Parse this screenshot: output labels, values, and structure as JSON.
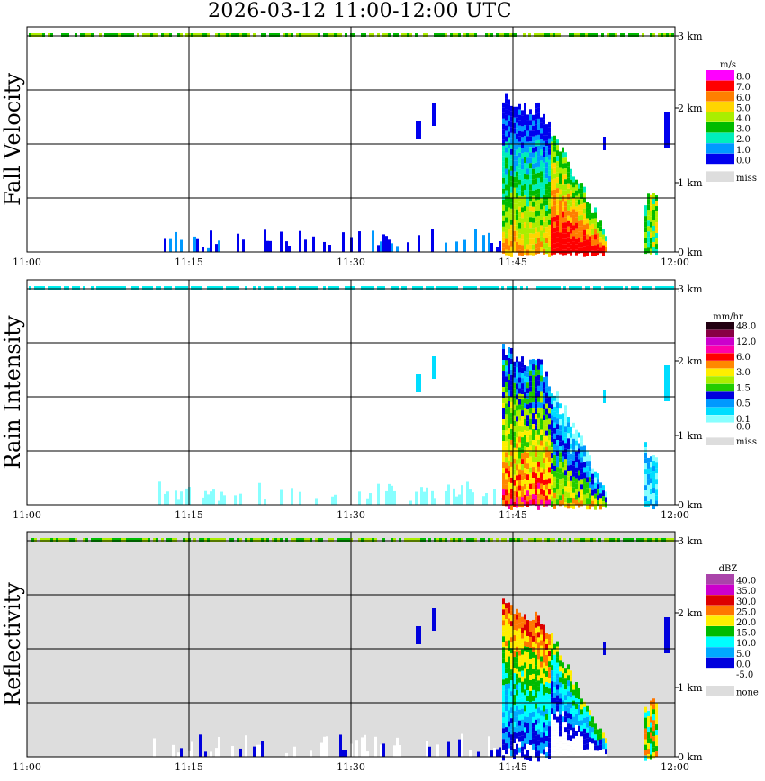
{
  "title": "2026-03-12   11:00-12:00 UTC",
  "chart_data": [
    {
      "type": "heatmap",
      "title": "Fall Velocity",
      "time_ticks": [
        "11:00",
        "11:15",
        "11:30",
        "11:45",
        "12:00"
      ],
      "height_ticks": [
        "3 km",
        "2 km",
        "1 km",
        "0 km"
      ],
      "legend_unit": "m/s",
      "legend": [
        {
          "label": "8.0",
          "color": "#ff00ff"
        },
        {
          "label": "7.0",
          "color": "#ff0000"
        },
        {
          "label": "6.0",
          "color": "#ff7f00"
        },
        {
          "label": "5.0",
          "color": "#ffd500"
        },
        {
          "label": "4.0",
          "color": "#aaee00"
        },
        {
          "label": "3.0",
          "color": "#00bb00"
        },
        {
          "label": "2.0",
          "color": "#00eebb"
        },
        {
          "label": "1.0",
          "color": "#0099ff"
        },
        {
          "label": "0.0",
          "color": "#0000ee"
        },
        {
          "label": "miss",
          "color": "#dddddd"
        }
      ]
    },
    {
      "type": "heatmap",
      "title": "Rain Intensity",
      "time_ticks": [
        "11:00",
        "11:15",
        "11:30",
        "11:45",
        "12:00"
      ],
      "height_ticks": [
        "3 km",
        "2 km",
        "1 km",
        "0 km"
      ],
      "legend_unit": "mm/hr",
      "legend": [
        {
          "label": "48.0",
          "color": "#220011"
        },
        {
          "label": "",
          "color": "#880044"
        },
        {
          "label": "12.0",
          "color": "#cc00cc"
        },
        {
          "label": "",
          "color": "#ff00aa"
        },
        {
          "label": "6.0",
          "color": "#ff0000"
        },
        {
          "label": "",
          "color": "#ff8800"
        },
        {
          "label": "3.0",
          "color": "#ffee00"
        },
        {
          "label": "",
          "color": "#aaee00"
        },
        {
          "label": "1.5",
          "color": "#22cc00"
        },
        {
          "label": "",
          "color": "#0000dd"
        },
        {
          "label": "0.5",
          "color": "#0099ff"
        },
        {
          "label": "",
          "color": "#00ddff"
        },
        {
          "label": "0.1",
          "color": "#88ffff"
        },
        {
          "label": "0.0",
          "color": "#ffffff"
        },
        {
          "label": "miss",
          "color": "#dddddd"
        }
      ]
    },
    {
      "type": "heatmap",
      "title": "Reflectivity",
      "time_ticks": [
        "11:00",
        "11:15",
        "11:30",
        "11:45",
        "12:00"
      ],
      "height_ticks": [
        "3 km",
        "2 km",
        "1 km",
        "0 km"
      ],
      "legend_unit": "dBZ",
      "legend": [
        {
          "label": "40.0",
          "color": "#aa44aa"
        },
        {
          "label": "35.0",
          "color": "#cc00cc"
        },
        {
          "label": "30.0",
          "color": "#dd0000"
        },
        {
          "label": "25.0",
          "color": "#ff7700"
        },
        {
          "label": "20.0",
          "color": "#ffee00"
        },
        {
          "label": "15.0",
          "color": "#00bb00"
        },
        {
          "label": "10.0",
          "color": "#00ffff"
        },
        {
          "label": "5.0",
          "color": "#00aaff"
        },
        {
          "label": "0.0",
          "color": "#0000dd"
        },
        {
          "label": "-5.0",
          "color": "#ffffff"
        },
        {
          "label": "none",
          "color": "#dddddd"
        }
      ]
    }
  ]
}
